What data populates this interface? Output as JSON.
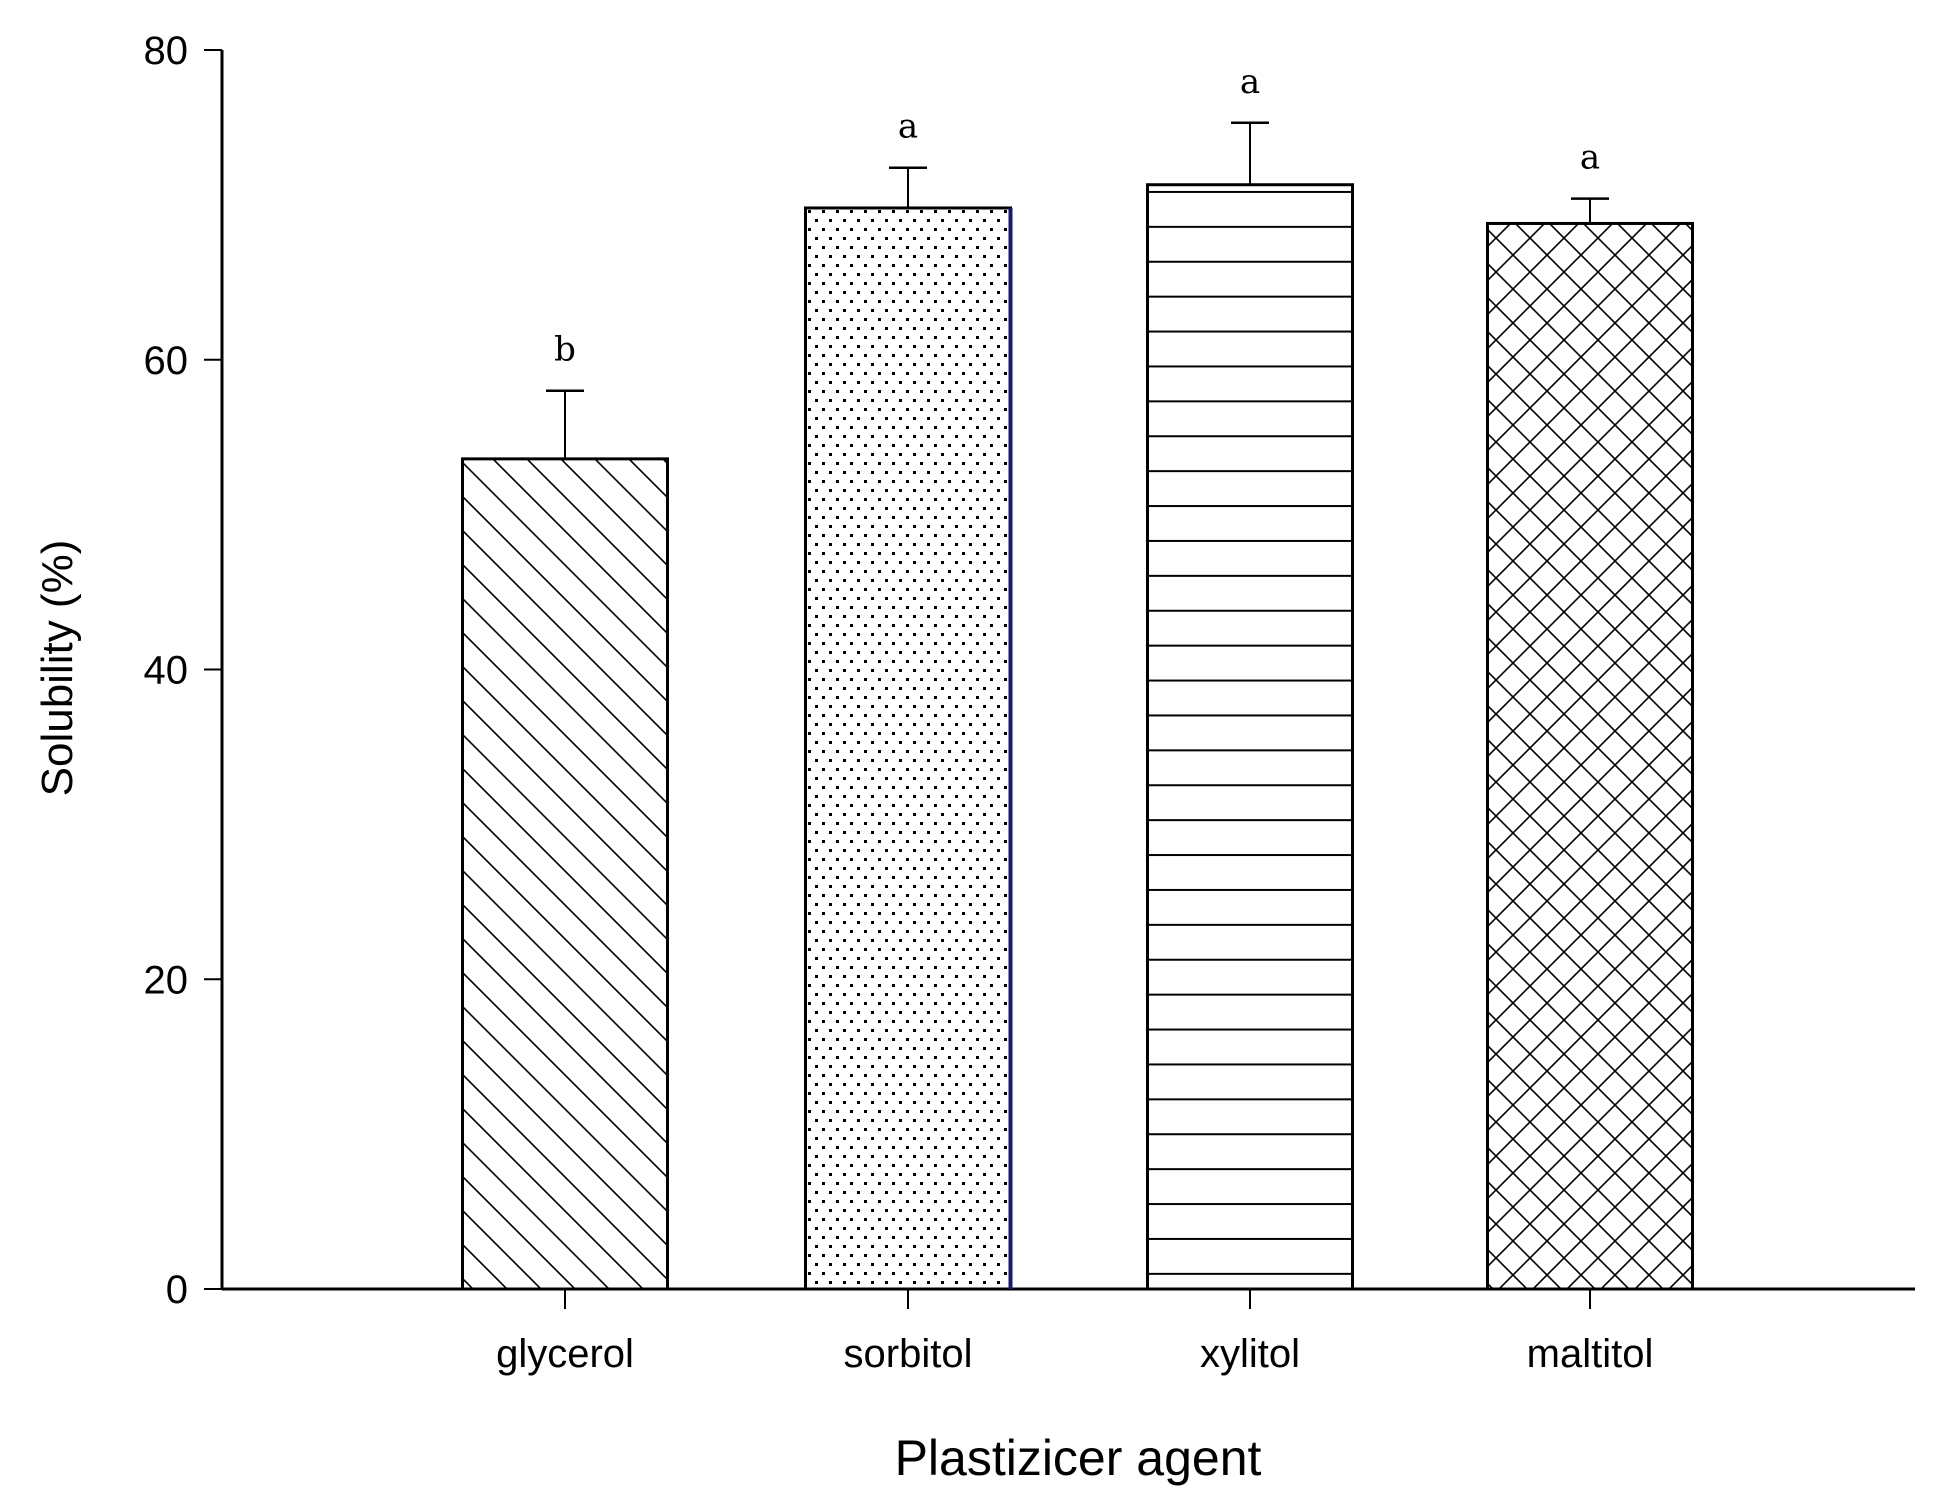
{
  "chart_data": {
    "type": "bar",
    "categories": [
      "glycerol",
      "sorbitol",
      "xylitol",
      "maltitol"
    ],
    "values": [
      53.6,
      69.8,
      71.3,
      68.8
    ],
    "error_plus": [
      4.4,
      2.6,
      4.0,
      1.6
    ],
    "significance": [
      "b",
      "a",
      "a",
      "a"
    ],
    "patterns": [
      "diagonal-hatch",
      "dots",
      "horizontal-lines",
      "crosshatch"
    ],
    "xlabel": "Plastizicer agent",
    "ylabel": "Solubility (%)",
    "ylim": [
      0,
      80
    ],
    "yticks": [
      "0",
      "20",
      "40",
      "60",
      "80"
    ],
    "grid": false,
    "legend": "none",
    "colors": {
      "bar_fill": "#ffffff",
      "bar_stroke": "#000000",
      "sorbitol_edge": "#1a1a6e"
    }
  }
}
